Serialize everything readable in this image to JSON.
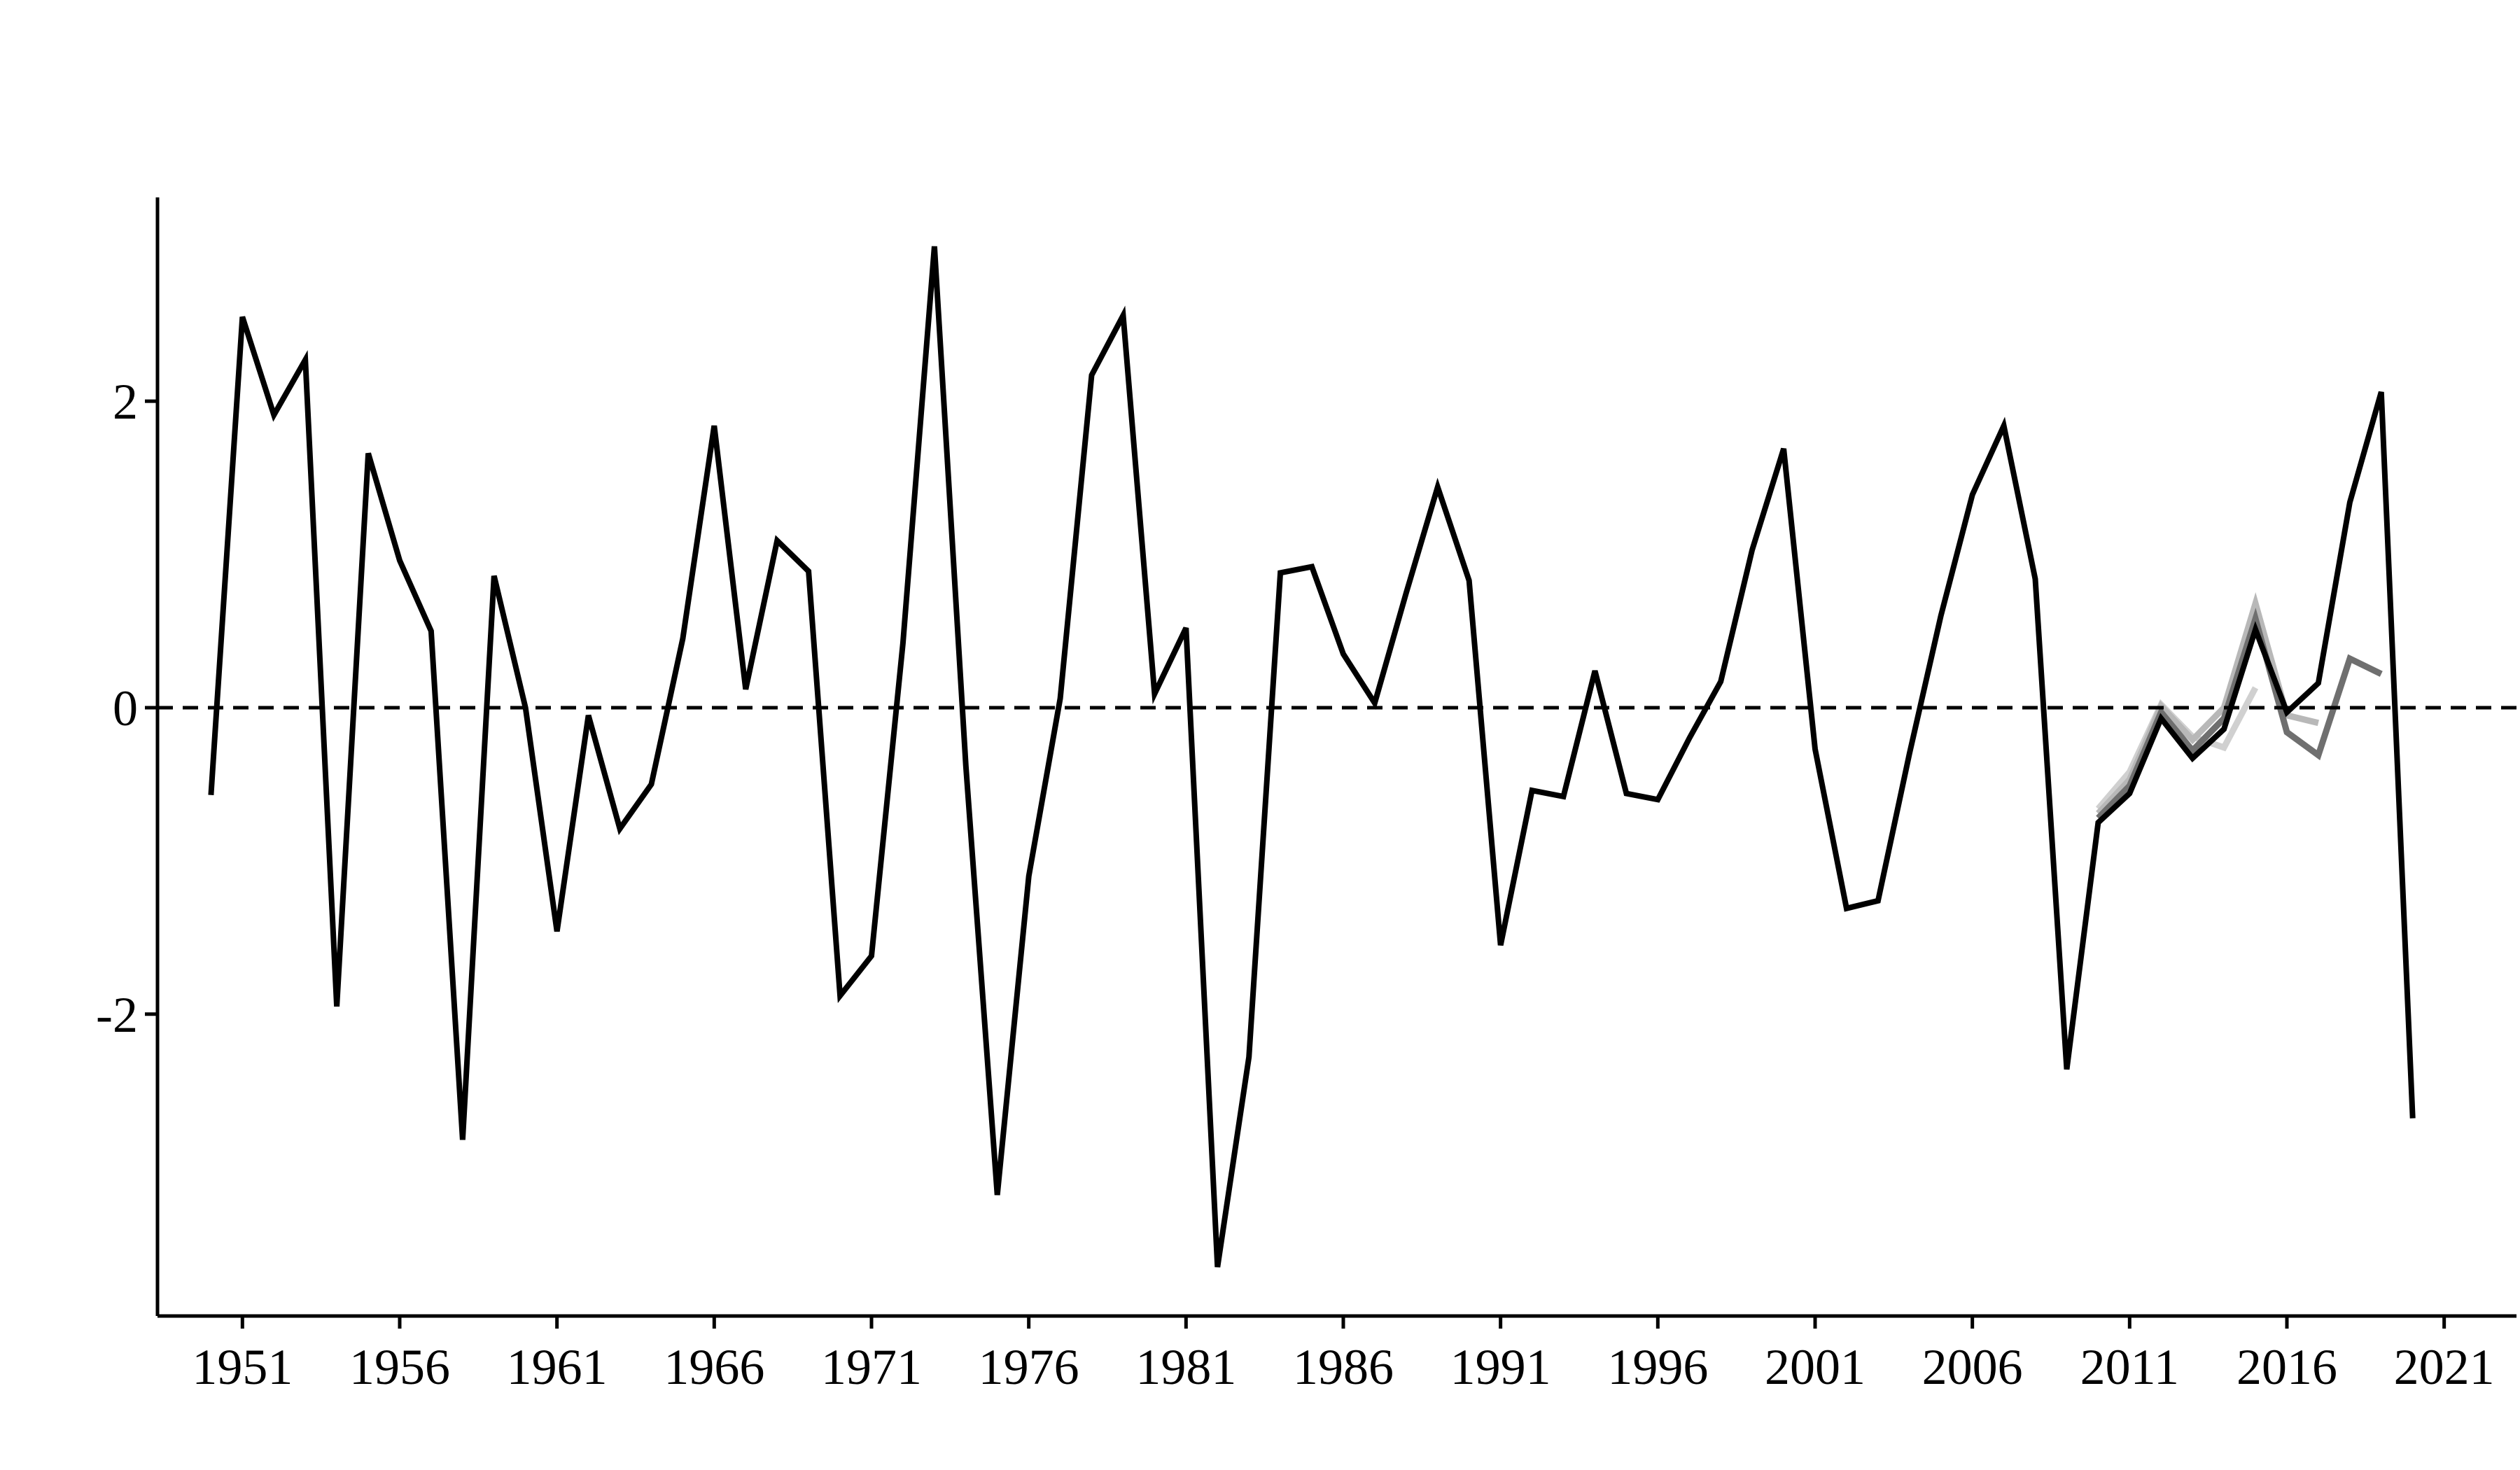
{
  "chart_data": {
    "type": "line",
    "title": "",
    "xlabel": "",
    "ylabel": "",
    "xlim": [
      1948.3,
      2023.3
    ],
    "ylim": [
      -3.97,
      3.33
    ],
    "x_ticks": [
      1951,
      1956,
      1961,
      1966,
      1971,
      1976,
      1981,
      1986,
      1991,
      1996,
      2001,
      2006,
      2011,
      2016,
      2021
    ],
    "x_tick_labels": [
      "1951",
      "1956",
      "1961",
      "1966",
      "1971",
      "1976",
      "1981",
      "1986",
      "1991",
      "1996",
      "2001",
      "2006",
      "2011",
      "2016",
      "2021"
    ],
    "y_ticks": [
      -2,
      0,
      2
    ],
    "y_tick_labels": [
      "-2",
      "0",
      "2"
    ],
    "grid": false,
    "legend": "none",
    "reference_line": {
      "y": 0,
      "style": "dashed",
      "color": "#000000"
    },
    "series": [
      {
        "color": "#000000",
        "x": [
          1950,
          1951,
          1952,
          1953,
          1954,
          1955,
          1956,
          1957,
          1958,
          1959,
          1960,
          1961,
          1962,
          1963,
          1964,
          1965,
          1966,
          1967,
          1968,
          1969,
          1970,
          1971,
          1972,
          1973,
          1974,
          1975,
          1976,
          1977,
          1978,
          1979,
          1980,
          1981,
          1982,
          1983,
          1984,
          1985,
          1986,
          1987,
          1988,
          1989,
          1990,
          1991,
          1992,
          1993,
          1994,
          1995,
          1996,
          1997,
          1998,
          1999,
          2000,
          2001,
          2002,
          2003,
          2004,
          2005,
          2006,
          2007,
          2008,
          2009,
          2010,
          2011,
          2012,
          2013,
          2014,
          2015,
          2016,
          2017,
          2018,
          2019,
          2020
        ],
        "values": [
          -0.57,
          2.55,
          1.91,
          2.27,
          -1.95,
          1.66,
          0.96,
          0.5,
          -2.82,
          0.86,
          0.0,
          -1.46,
          -0.05,
          -0.79,
          -0.5,
          0.45,
          1.84,
          0.12,
          1.09,
          0.89,
          -1.88,
          -1.62,
          0.42,
          3.01,
          -0.38,
          -3.18,
          -1.1,
          0.06,
          2.17,
          2.56,
          0.09,
          0.52,
          -3.65,
          -2.28,
          0.88,
          0.92,
          0.35,
          0.03,
          0.75,
          1.44,
          0.83,
          -1.55,
          -0.54,
          -0.58,
          0.24,
          -0.56,
          -0.6,
          -0.2,
          0.17,
          1.03,
          1.69,
          -0.27,
          -1.31,
          -1.26,
          -0.3,
          0.6,
          1.39,
          1.84,
          0.84,
          -2.36,
          -0.75,
          -0.56,
          -0.07,
          -0.33,
          -0.14,
          0.51,
          -0.03,
          0.16,
          1.34,
          2.06,
          -2.68
        ]
      },
      {
        "color": "#d0d0d0",
        "x": [
          2010,
          2011,
          2012,
          2013,
          2014,
          2015
        ],
        "values": [
          -0.66,
          -0.42,
          0.02,
          -0.19,
          -0.26,
          0.13
        ]
      },
      {
        "color": "#b8b8b8",
        "x": [
          2010,
          2011,
          2012,
          2013,
          2014,
          2015,
          2016,
          2017
        ],
        "values": [
          -0.69,
          -0.47,
          0.01,
          -0.21,
          0.0,
          0.68,
          -0.05,
          -0.1
        ]
      },
      {
        "color": "#6f6f6f",
        "x": [
          2010,
          2011,
          2012,
          2013,
          2014,
          2015,
          2016,
          2017,
          2018,
          2019
        ],
        "values": [
          -0.72,
          -0.51,
          -0.03,
          -0.28,
          -0.07,
          0.58,
          -0.16,
          -0.31,
          0.32,
          0.22
        ]
      }
    ]
  }
}
